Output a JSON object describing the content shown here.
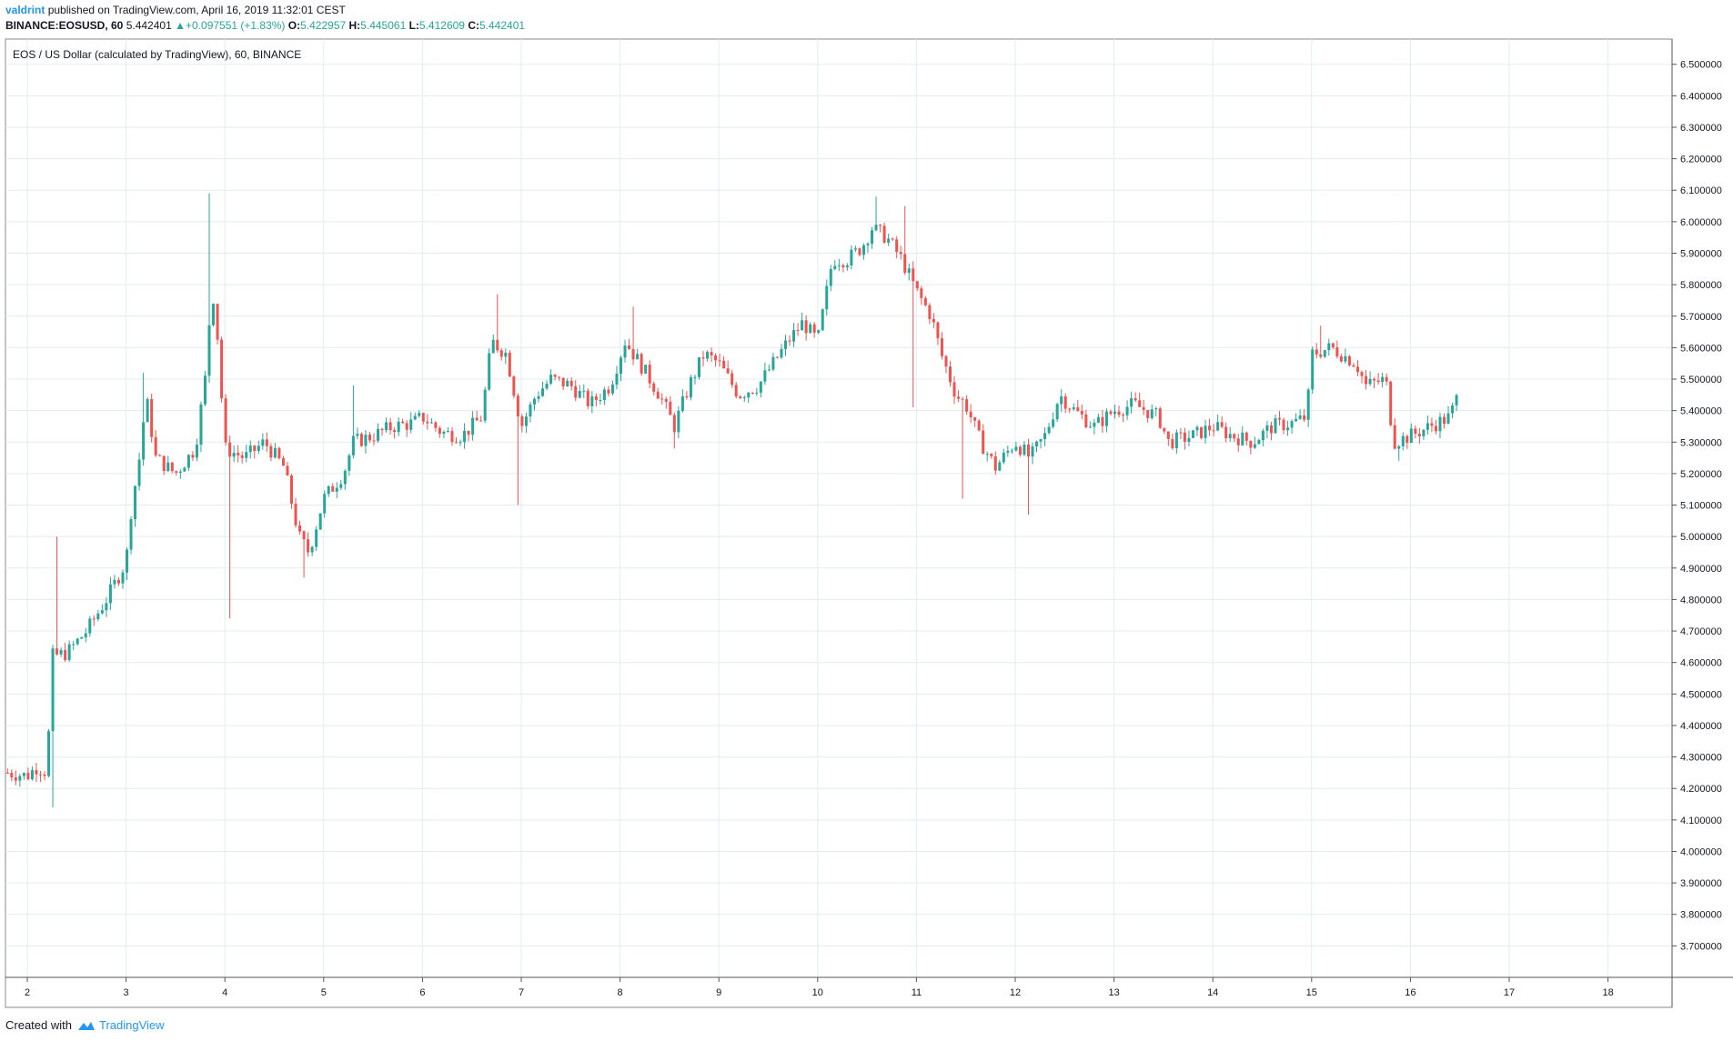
{
  "header": {
    "publisher": "valdrint",
    "published_text": "published on TradingView.com, April 16, 2019 11:32:01 CEST",
    "symbol": "BINANCE:EOSUSD, 60",
    "last": "5.442401",
    "change": "+0.097551 (+1.83%)",
    "o_label": "O:",
    "o": "5.422957",
    "h_label": "H:",
    "h": "5.445061",
    "l_label": "L:",
    "l": "5.412609",
    "c_label": "C:",
    "c": "5.442401"
  },
  "footer": {
    "created_with": "Created with",
    "brand": "TradingView"
  },
  "colors": {
    "up": "#26a69a",
    "down": "#ef5350",
    "grid": "#e1ecf2",
    "axis": "#555555",
    "brand": "#2196f3"
  },
  "chart_data": {
    "type": "candlestick",
    "title": "EOS / US Dollar (calculated by TradingView), 60, BINANCE",
    "x_tick_labels": [
      "2",
      "3",
      "4",
      "5",
      "6",
      "7",
      "8",
      "9",
      "10",
      "11",
      "12",
      "13",
      "14",
      "15",
      "16",
      "17",
      "18"
    ],
    "y_tick_labels": [
      "6.500000",
      "6.400000",
      "6.300000",
      "6.200000",
      "6.100000",
      "6.000000",
      "5.900000",
      "5.800000",
      "5.700000",
      "5.600000",
      "5.500000",
      "5.400000",
      "5.300000",
      "5.200000",
      "5.100000",
      "5.000000",
      "4.900000",
      "4.800000",
      "4.700000",
      "4.600000",
      "4.500000",
      "4.400000",
      "4.300000",
      "4.200000",
      "4.100000",
      "4.000000",
      "3.900000",
      "3.800000",
      "3.700000"
    ],
    "ylim": [
      3.6,
      6.58
    ],
    "x_day_range": [
      1.8,
      18.6
    ],
    "path": [
      [
        1.8,
        4.25
      ],
      [
        2.0,
        4.24
      ],
      [
        2.1,
        4.27
      ],
      [
        2.2,
        4.25
      ],
      [
        2.25,
        4.62
      ],
      [
        2.4,
        4.63
      ],
      [
        2.6,
        4.7
      ],
      [
        2.8,
        4.8
      ],
      [
        3.0,
        4.92
      ],
      [
        3.05,
        5.08
      ],
      [
        3.15,
        5.28
      ],
      [
        3.2,
        5.45
      ],
      [
        3.3,
        5.25
      ],
      [
        3.5,
        5.2
      ],
      [
        3.7,
        5.28
      ],
      [
        3.8,
        5.5
      ],
      [
        3.87,
        5.8
      ],
      [
        3.93,
        5.62
      ],
      [
        4.0,
        5.28
      ],
      [
        4.2,
        5.25
      ],
      [
        4.4,
        5.3
      ],
      [
        4.6,
        5.22
      ],
      [
        4.75,
        5.0
      ],
      [
        4.85,
        4.95
      ],
      [
        5.0,
        5.12
      ],
      [
        5.2,
        5.2
      ],
      [
        5.3,
        5.3
      ],
      [
        5.5,
        5.32
      ],
      [
        5.7,
        5.35
      ],
      [
        5.9,
        5.36
      ],
      [
        6.0,
        5.38
      ],
      [
        6.2,
        5.33
      ],
      [
        6.4,
        5.32
      ],
      [
        6.6,
        5.38
      ],
      [
        6.7,
        5.62
      ],
      [
        6.85,
        5.58
      ],
      [
        7.0,
        5.35
      ],
      [
        7.15,
        5.45
      ],
      [
        7.3,
        5.5
      ],
      [
        7.5,
        5.48
      ],
      [
        7.7,
        5.42
      ],
      [
        7.9,
        5.48
      ],
      [
        8.05,
        5.62
      ],
      [
        8.2,
        5.55
      ],
      [
        8.4,
        5.45
      ],
      [
        8.55,
        5.35
      ],
      [
        8.7,
        5.48
      ],
      [
        8.85,
        5.58
      ],
      [
        9.0,
        5.55
      ],
      [
        9.2,
        5.45
      ],
      [
        9.4,
        5.48
      ],
      [
        9.55,
        5.55
      ],
      [
        9.7,
        5.62
      ],
      [
        9.85,
        5.68
      ],
      [
        10.0,
        5.62
      ],
      [
        10.15,
        5.88
      ],
      [
        10.3,
        5.88
      ],
      [
        10.45,
        5.92
      ],
      [
        10.55,
        5.98
      ],
      [
        10.7,
        5.95
      ],
      [
        10.85,
        5.88
      ],
      [
        11.0,
        5.78
      ],
      [
        11.15,
        5.7
      ],
      [
        11.25,
        5.58
      ],
      [
        11.4,
        5.45
      ],
      [
        11.5,
        5.42
      ],
      [
        11.65,
        5.3
      ],
      [
        11.8,
        5.22
      ],
      [
        12.0,
        5.3
      ],
      [
        12.15,
        5.25
      ],
      [
        12.3,
        5.32
      ],
      [
        12.45,
        5.45
      ],
      [
        12.6,
        5.4
      ],
      [
        12.8,
        5.35
      ],
      [
        13.0,
        5.4
      ],
      [
        13.2,
        5.42
      ],
      [
        13.45,
        5.38
      ],
      [
        13.55,
        5.3
      ],
      [
        13.8,
        5.32
      ],
      [
        14.0,
        5.35
      ],
      [
        14.2,
        5.32
      ],
      [
        14.4,
        5.3
      ],
      [
        14.6,
        5.35
      ],
      [
        14.8,
        5.36
      ],
      [
        14.95,
        5.38
      ],
      [
        15.0,
        5.58
      ],
      [
        15.2,
        5.6
      ],
      [
        15.45,
        5.55
      ],
      [
        15.55,
        5.48
      ],
      [
        15.75,
        5.5
      ],
      [
        15.83,
        5.3
      ],
      [
        16.0,
        5.32
      ],
      [
        16.2,
        5.35
      ],
      [
        16.4,
        5.38
      ],
      [
        16.47,
        5.44
      ]
    ],
    "noise": 0.05,
    "spike_highs": [
      [
        2.3,
        5.0
      ],
      [
        3.18,
        5.52
      ],
      [
        3.83,
        6.09
      ],
      [
        5.3,
        5.48
      ],
      [
        6.77,
        5.77
      ],
      [
        8.15,
        5.73
      ],
      [
        10.6,
        6.08
      ],
      [
        10.9,
        6.05
      ],
      [
        15.1,
        5.67
      ]
    ],
    "spike_lows": [
      [
        2.24,
        4.14
      ],
      [
        4.03,
        4.74
      ],
      [
        4.8,
        4.87
      ],
      [
        6.97,
        5.1
      ],
      [
        8.55,
        5.28
      ],
      [
        10.95,
        5.41
      ],
      [
        11.45,
        5.12
      ],
      [
        12.12,
        5.07
      ],
      [
        15.9,
        5.24
      ]
    ]
  }
}
